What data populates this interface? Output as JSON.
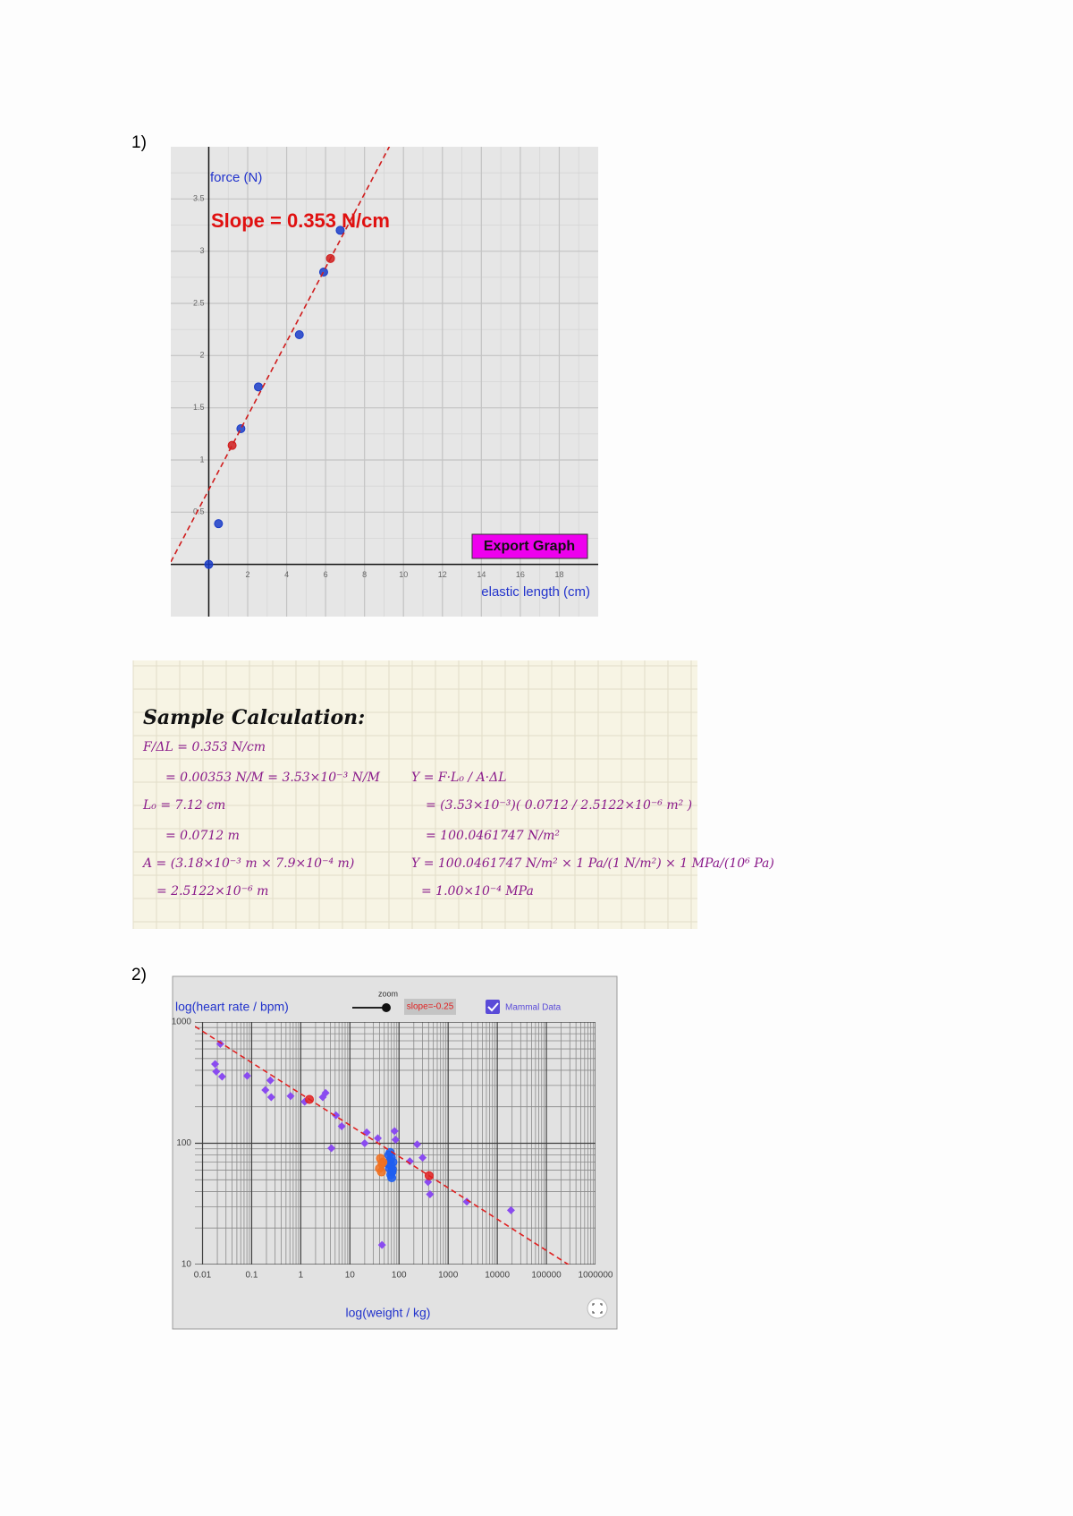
{
  "labels": [
    "1)",
    "2)"
  ],
  "chart_data": [
    {
      "type": "scatter",
      "y_label": "force (N)",
      "x_label": "elastic length (cm)",
      "annotation": "Slope = 0.353 N/cm",
      "button": "Export Graph",
      "xlim": [
        -1.95,
        20
      ],
      "ylim": [
        -0.5,
        4
      ],
      "xticks": [
        2,
        4,
        6,
        8,
        10,
        12,
        14,
        16,
        18
      ],
      "yticks": [
        0.5,
        1,
        1.5,
        2,
        2.5,
        3,
        3.5
      ],
      "grid": true,
      "series": [
        {
          "color": "#1a3cc8",
          "marker": "circle",
          "x": [
            0,
            0.5,
            1.65,
            2.55,
            4.65,
            5.9,
            6.75
          ],
          "values": [
            0,
            0.39,
            1.3,
            1.7,
            2.2,
            2.8,
            3.2
          ]
        },
        {
          "color": "#d01c1c",
          "marker": "circle",
          "fit_line": true,
          "x": [
            1.2,
            6.25
          ],
          "values": [
            1.14,
            2.93
          ]
        }
      ]
    },
    {
      "type": "scatter",
      "y_label": "log(heart rate / bpm)",
      "x_label": "log(weight / kg)",
      "slider_label": "zoom",
      "slope_label": "slope=-0.25",
      "xscale": "log",
      "yscale": "log",
      "xlim": [
        0.007,
        1000000
      ],
      "ylim": [
        10,
        1000
      ],
      "xticks": [
        0.01,
        0.1,
        1,
        10,
        100,
        1000,
        10000,
        100000,
        1000000
      ],
      "yticks": [
        10,
        100,
        1000
      ],
      "grid": true,
      "series": [
        {
          "name": "Mammal Data",
          "color": "#8a4bf0",
          "marker": "diamond",
          "x": [
            0.023,
            0.018,
            0.019,
            0.025,
            0.081,
            0.19,
            0.24,
            0.25,
            0.62,
            1.2,
            2.8,
            3.2,
            5.2,
            6.8,
            4.2,
            22,
            37,
            20,
            81,
            85,
            45,
            166,
            234,
            302,
            390,
            427,
            2400,
            19000
          ],
          "values": [
            660,
            450,
            390,
            355,
            360,
            275,
            330,
            240,
            245,
            220,
            240,
            260,
            170,
            138,
            91,
            123,
            110,
            100,
            126,
            107,
            14.5,
            71,
            98,
            76,
            48,
            38,
            33,
            28
          ]
        },
        {
          "color": "#1e5ef0",
          "marker": "circle",
          "x": [
            62,
            66,
            70,
            72,
            68,
            64,
            75,
            70,
            66,
            73,
            60,
            71
          ],
          "values": [
            80,
            72,
            65,
            58,
            55,
            62,
            70,
            76,
            84,
            61,
            68,
            52
          ]
        },
        {
          "color": "#f07020",
          "marker": "circle",
          "x": [
            42,
            45,
            40,
            47,
            44
          ],
          "values": [
            75,
            68,
            62,
            70,
            58
          ]
        },
        {
          "color": "#e02020",
          "marker": "circle",
          "fit_line": true,
          "x": [
            1.5,
            410
          ],
          "values": [
            230,
            54
          ]
        }
      ]
    }
  ],
  "calculation": {
    "title": "Sample Calculation:",
    "left": [
      "F/ΔL = 0.353 N/cm",
      "= 0.00353 N/M = 3.53×10⁻³ N/M",
      "L₀ = 7.12 cm",
      "= 0.0712 m",
      "A = (3.18×10⁻³ m × 7.9×10⁻⁴ m)",
      "= 2.5122×10⁻⁶ m"
    ],
    "right": [
      "Y = F·L₀ / A·ΔL",
      "= (3.53×10⁻³)( 0.0712 / 2.5122×10⁻⁶ m² )",
      "= 100.0461747 N/m²",
      "Y = 100.0461747 N/m² × 1 Pa/(1 N/m²) × 1 MPa/(10⁶ Pa)",
      "= 1.00×10⁻⁴ MPa"
    ]
  }
}
